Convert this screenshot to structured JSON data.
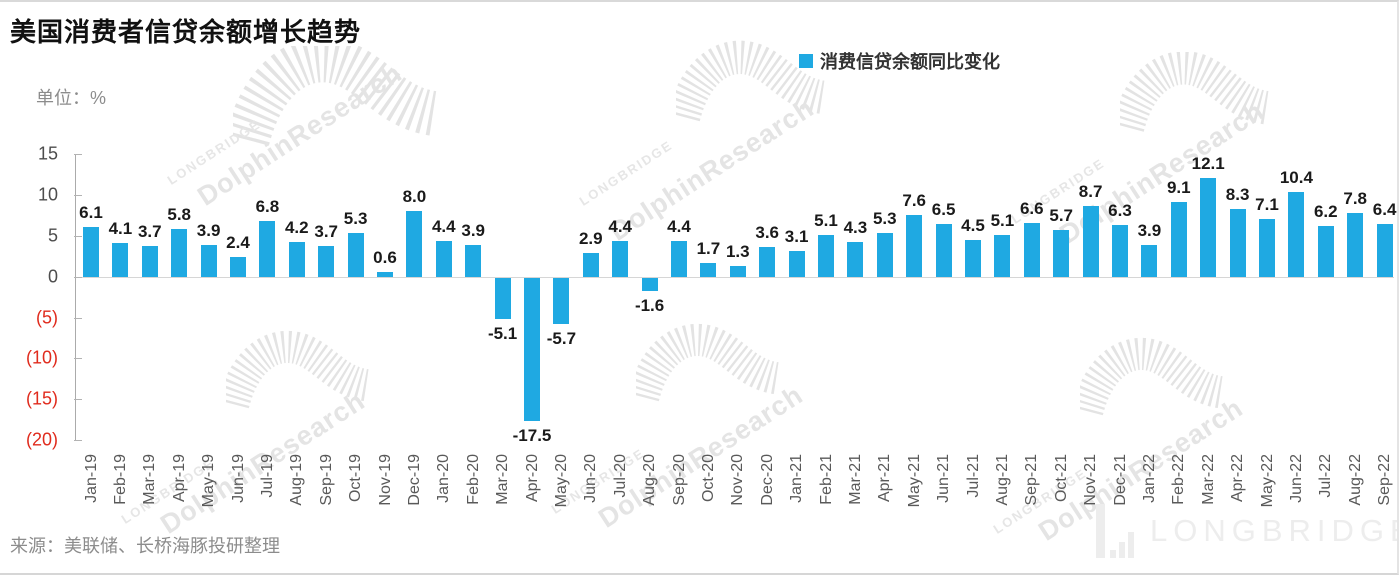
{
  "title": "美国消费者信贷余额增长趋势",
  "unit_label": "单位：%",
  "legend": {
    "label": "消费信贷余额同比变化",
    "color": "#1FA9E2"
  },
  "source": "来源：美联储、长桥海豚投研整理",
  "watermark": {
    "brand": "LONGBRIDGE",
    "research": "DolphinResearch",
    "logo_text": "LONGBRIDGE"
  },
  "colors": {
    "bar": "#1FA9E2",
    "negative_axis_label": "#e02b1d",
    "axis_line": "#ababab",
    "zero_line": "#d6d6d6"
  },
  "chart_data": {
    "type": "bar",
    "title": "美国消费者信贷余额增长趋势",
    "series_name": "消费信贷余额同比变化",
    "ylabel": "%",
    "ylim": [
      -20,
      15
    ],
    "ytick_interval": 5,
    "grid": false,
    "legend_position": "top",
    "yticks": [
      {
        "v": 15,
        "label": "15"
      },
      {
        "v": 10,
        "label": "10"
      },
      {
        "v": 5,
        "label": "5"
      },
      {
        "v": 0,
        "label": "0"
      },
      {
        "v": -5,
        "label": "(5)"
      },
      {
        "v": -10,
        "label": "(10)"
      },
      {
        "v": -15,
        "label": "(15)"
      },
      {
        "v": -20,
        "label": "(20)"
      }
    ],
    "categories": [
      "Jan-19",
      "Feb-19",
      "Mar-19",
      "Apr-19",
      "May-19",
      "Jun-19",
      "Jul-19",
      "Aug-19",
      "Sep-19",
      "Oct-19",
      "Nov-19",
      "Dec-19",
      "Jan-20",
      "Feb-20",
      "Mar-20",
      "Apr-20",
      "May-20",
      "Jun-20",
      "Jul-20",
      "Aug-20",
      "Sep-20",
      "Oct-20",
      "Nov-20",
      "Dec-20",
      "Jan-21",
      "Feb-21",
      "Mar-21",
      "Apr-21",
      "May-21",
      "Jun-21",
      "Jul-21",
      "Aug-21",
      "Sep-21",
      "Oct-21",
      "Nov-21",
      "Dec-21",
      "Jan-22",
      "Feb-22",
      "Mar-22",
      "Apr-22",
      "May-22",
      "Jun-22",
      "Jul-22",
      "Aug-22",
      "Sep-22"
    ],
    "values": [
      6.1,
      4.1,
      3.7,
      5.8,
      3.9,
      2.4,
      6.8,
      4.2,
      3.7,
      5.3,
      0.6,
      8.0,
      4.4,
      3.9,
      -5.1,
      -17.5,
      -5.7,
      2.9,
      4.4,
      -1.6,
      4.4,
      1.7,
      1.3,
      3.6,
      3.1,
      5.1,
      4.3,
      5.3,
      7.6,
      6.5,
      4.5,
      5.1,
      6.6,
      5.7,
      8.7,
      6.3,
      3.9,
      9.1,
      12.1,
      8.3,
      7.1,
      10.4,
      6.2,
      7.8,
      6.4
    ]
  }
}
